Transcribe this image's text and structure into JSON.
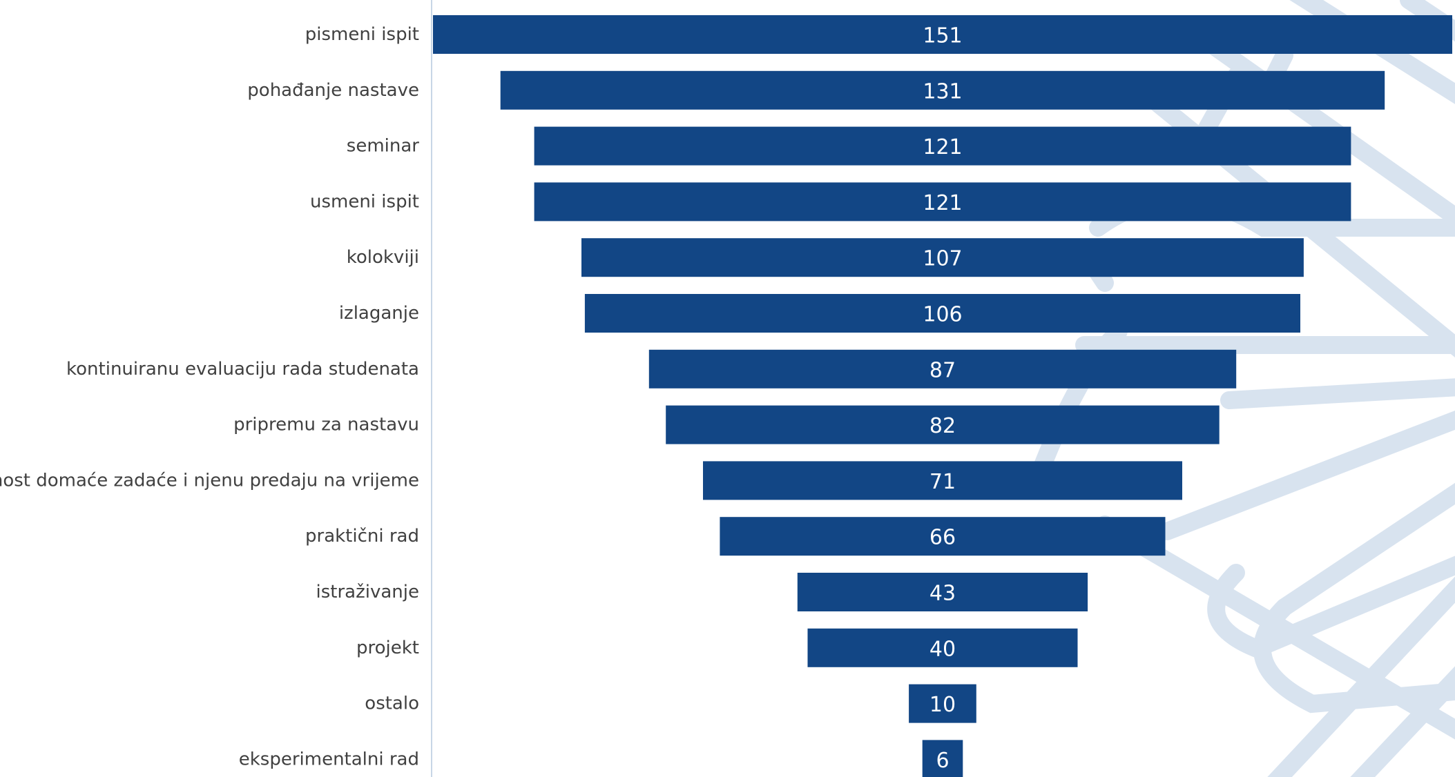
{
  "colors": {
    "bar": "#124685",
    "background_pattern": "#d8e3ef",
    "axis_line": "#c8d6e6",
    "category_text": "#404040",
    "value_text": "#ffffff"
  },
  "chart_data": {
    "type": "bar",
    "orientation": "horizontal-centered-funnel",
    "categories": [
      "pismeni ispit",
      "pohađanje nastave",
      "seminar",
      "usmeni ispit",
      "kolokviji",
      "izlaganje",
      "kontinuiranu evaluaciju rada studenata",
      "pripremu za nastavu",
      "točnost domaće zadaće i njenu predaju na vrijeme",
      "praktični rad",
      "istraživanje",
      "projekt",
      "ostalo",
      "eksperimentalni rad"
    ],
    "values": [
      151,
      131,
      121,
      121,
      107,
      106,
      87,
      82,
      71,
      66,
      43,
      40,
      10,
      6
    ],
    "title": "",
    "xlabel": "",
    "ylabel": "",
    "xlim": [
      0,
      151
    ],
    "grid": false,
    "legend": "none",
    "data_labels": "center-of-bar"
  }
}
